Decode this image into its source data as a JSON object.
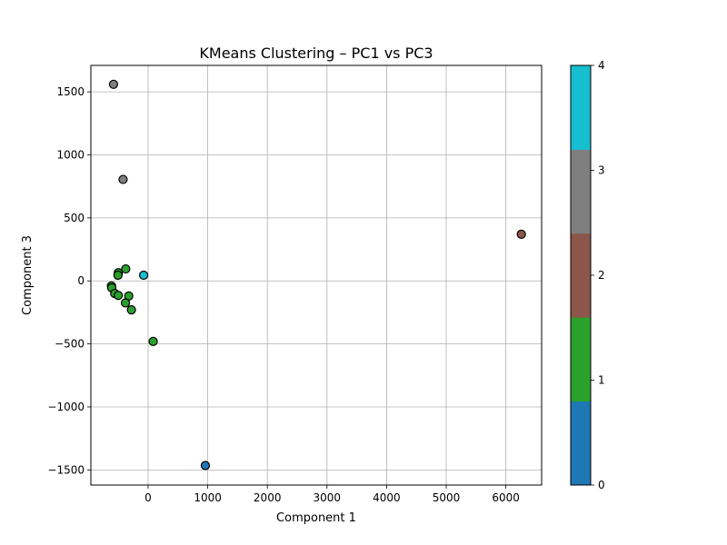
{
  "chart_data": {
    "type": "scatter",
    "title": "KMeans Clustering – PC1 vs PC3",
    "xlabel": "Component 1",
    "ylabel": "Component 3",
    "xlim": [
      -960,
      6600
    ],
    "ylim": [
      -1620,
      1710
    ],
    "x_ticks": [
      0,
      1000,
      2000,
      3000,
      4000,
      5000,
      6000
    ],
    "y_ticks": [
      -1500,
      -1000,
      -500,
      0,
      500,
      1000,
      1500
    ],
    "x_tick_labels": [
      "0",
      "1000",
      "2000",
      "3000",
      "4000",
      "5000",
      "6000"
    ],
    "y_tick_labels": [
      "−1500",
      "−1000",
      "−500",
      "0",
      "500",
      "1000",
      "1500"
    ],
    "grid": true,
    "colorbar": {
      "min": 0,
      "max": 4,
      "ticks": [
        0,
        1,
        2,
        3,
        4
      ],
      "tick_labels": [
        "0",
        "1",
        "2",
        "3",
        "4"
      ],
      "colors": [
        "#1f77b4",
        "#2ca02c",
        "#8c564b",
        "#7f7f7f",
        "#17becf"
      ]
    },
    "points": [
      {
        "x": -580,
        "y": 1560,
        "cluster": 3
      },
      {
        "x": -420,
        "y": 805,
        "cluster": 3
      },
      {
        "x": 6260,
        "y": 370,
        "cluster": 2
      },
      {
        "x": -375,
        "y": 95,
        "cluster": 1
      },
      {
        "x": -500,
        "y": 65,
        "cluster": 1
      },
      {
        "x": -505,
        "y": 45,
        "cluster": 1
      },
      {
        "x": -75,
        "y": 45,
        "cluster": 4
      },
      {
        "x": -615,
        "y": -40,
        "cluster": 1
      },
      {
        "x": -610,
        "y": -55,
        "cluster": 1
      },
      {
        "x": -560,
        "y": -100,
        "cluster": 1
      },
      {
        "x": -500,
        "y": -115,
        "cluster": 1
      },
      {
        "x": -325,
        "y": -120,
        "cluster": 1
      },
      {
        "x": -380,
        "y": -175,
        "cluster": 1
      },
      {
        "x": -280,
        "y": -230,
        "cluster": 1
      },
      {
        "x": 85,
        "y": -480,
        "cluster": 1
      },
      {
        "x": 960,
        "y": -1465,
        "cluster": 0
      }
    ]
  }
}
